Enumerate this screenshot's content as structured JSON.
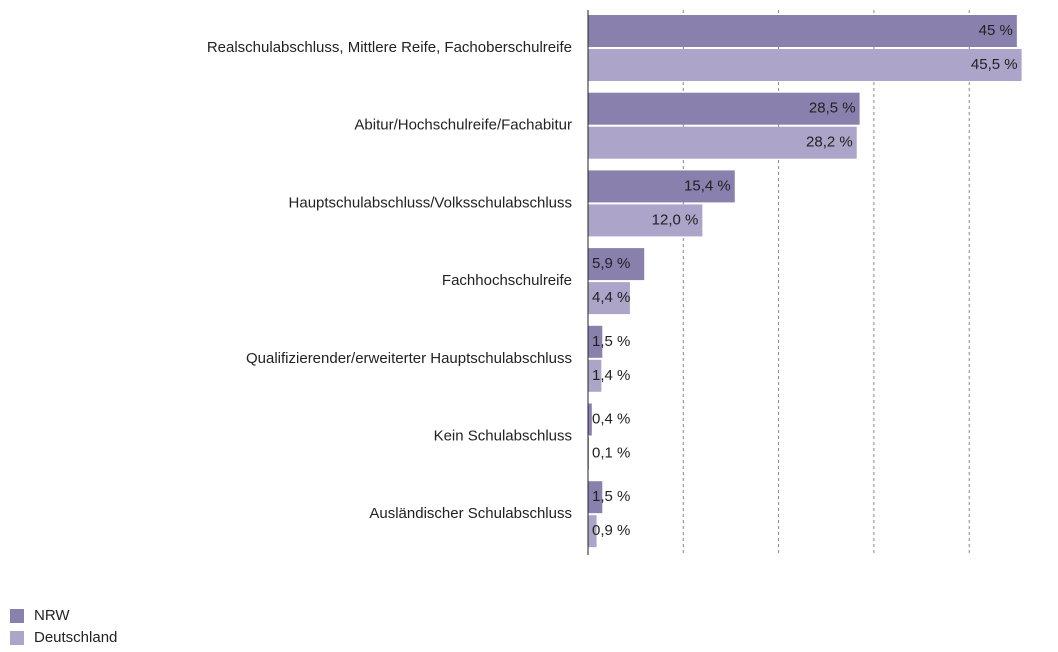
{
  "chart_data": {
    "type": "bar",
    "orientation": "horizontal",
    "categories": [
      "Realschulabschluss, Mittlere Reife, Fachoberschulreife",
      "Abitur/Hochschulreife/Fachabitur",
      "Hauptschulabschluss/Volksschulabschluss",
      "Fachhochschulreife",
      "Qualifizierender/erweiterter Hauptschulabschluss",
      "Kein Schulabschluss",
      "Ausländischer Schulabschluss"
    ],
    "series": [
      {
        "name": "NRW",
        "color": "#8a80ae",
        "values": [
          45,
          28.5,
          15.4,
          5.9,
          1.5,
          0.4,
          1.5
        ],
        "value_labels": [
          "45 %",
          "28,5 %",
          "15,4 %",
          "5,9 %",
          "1,5 %",
          "0,4 %",
          "1,5 %"
        ]
      },
      {
        "name": "Deutschland",
        "color": "#aca5c9",
        "values": [
          45.5,
          28.2,
          12.0,
          4.4,
          1.4,
          0.1,
          0.9
        ],
        "value_labels": [
          "45,5 %",
          "28,2 %",
          "12,0 %",
          "4,4 %",
          "1,4 %",
          "0,1 %",
          "0,9 %"
        ]
      }
    ],
    "xlim": [
      0,
      48
    ],
    "xticks": [
      10,
      20,
      30,
      40
    ],
    "grid": true
  }
}
